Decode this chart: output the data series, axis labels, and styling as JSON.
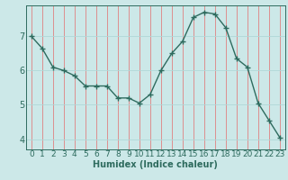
{
  "x": [
    0,
    1,
    2,
    3,
    4,
    5,
    6,
    7,
    8,
    9,
    10,
    11,
    12,
    13,
    14,
    15,
    16,
    17,
    18,
    19,
    20,
    21,
    22,
    23
  ],
  "y": [
    7.0,
    6.65,
    6.1,
    6.0,
    5.85,
    5.55,
    5.55,
    5.55,
    5.2,
    5.2,
    5.05,
    5.3,
    6.0,
    6.5,
    6.85,
    7.55,
    7.7,
    7.65,
    7.25,
    6.35,
    6.1,
    5.05,
    4.55,
    4.05
  ],
  "line_color": "#2e6b5e",
  "marker": "+",
  "markersize": 4,
  "linewidth": 1.0,
  "bg_color": "#cce8e8",
  "grid_color_v": "#e08080",
  "grid_color_h": "#b0d8d8",
  "xlabel": "Humidex (Indice chaleur)",
  "xlabel_fontsize": 7,
  "ylabel_ticks": [
    4,
    5,
    6,
    7
  ],
  "xlim": [
    -0.5,
    23.5
  ],
  "ylim": [
    3.7,
    7.9
  ],
  "xtick_labels": [
    "0",
    "1",
    "2",
    "3",
    "4",
    "5",
    "6",
    "7",
    "8",
    "9",
    "10",
    "11",
    "12",
    "13",
    "14",
    "15",
    "16",
    "17",
    "18",
    "19",
    "20",
    "21",
    "22",
    "23"
  ],
  "tick_fontsize": 6.5
}
